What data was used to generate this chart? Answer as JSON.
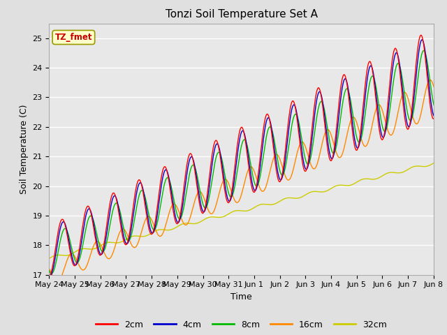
{
  "title": "Tonzi Soil Temperature Set A",
  "xlabel": "Time",
  "ylabel": "Soil Temperature (C)",
  "annotation": "TZ_fmet",
  "ylim": [
    17.0,
    25.5
  ],
  "xlim": [
    0,
    15
  ],
  "x_tick_labels": [
    "May 24",
    "May 25",
    "May 26",
    "May 27",
    "May 28",
    "May 29",
    "May 30",
    "May 31",
    "Jun 1",
    "Jun 2",
    "Jun 3",
    "Jun 4",
    "Jun 5",
    "Jun 6",
    "Jun 7",
    "Jun 8"
  ],
  "y_ticks": [
    17.0,
    18.0,
    19.0,
    20.0,
    21.0,
    22.0,
    23.0,
    24.0,
    25.0
  ],
  "series_labels": [
    "2cm",
    "4cm",
    "8cm",
    "16cm",
    "32cm"
  ],
  "series_colors": [
    "#ff0000",
    "#0000cc",
    "#00bb00",
    "#ff8800",
    "#cccc00"
  ],
  "fig_bg_color": "#e0e0e0",
  "plot_bg_color": "#e8e8e8",
  "title_fontsize": 11,
  "axis_label_fontsize": 9,
  "tick_fontsize": 8,
  "legend_fontsize": 9
}
